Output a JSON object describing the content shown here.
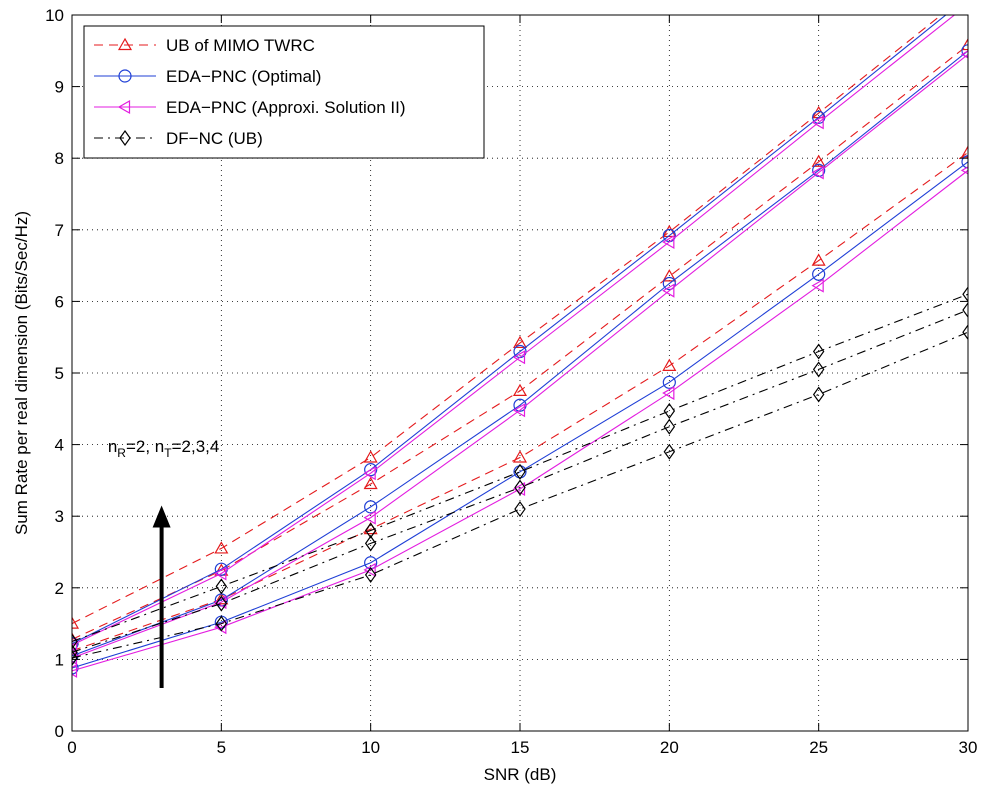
{
  "chart_data": {
    "type": "line",
    "title": "",
    "xlabel": "SNR (dB)",
    "ylabel": "Sum Rate per real dimension (Bits/Sec/Hz)",
    "xlim": [
      0,
      30
    ],
    "ylim": [
      0,
      10
    ],
    "xticks": [
      0,
      5,
      10,
      15,
      20,
      25,
      30
    ],
    "yticks": [
      0,
      1,
      2,
      3,
      4,
      5,
      6,
      7,
      8,
      9,
      10
    ],
    "grid": true,
    "legend_position": "top-left",
    "x": [
      0,
      5,
      10,
      15,
      20,
      25,
      30
    ],
    "series": [
      {
        "name": "UB of MIMO TWRC",
        "style": "dashed",
        "marker": "triangle-up",
        "color": "#e41a1c",
        "curves": [
          [
            1.5,
            2.55,
            3.82,
            5.42,
            6.97,
            8.63,
            10.3
          ],
          [
            1.28,
            2.24,
            3.45,
            4.75,
            6.35,
            7.95,
            9.58
          ],
          [
            1.12,
            1.84,
            2.82,
            3.82,
            5.1,
            6.57,
            8.08
          ]
        ]
      },
      {
        "name": "EDA−PNC (Optimal)",
        "style": "solid",
        "marker": "circle",
        "color": "#1f3fd6",
        "curves": [
          [
            1.22,
            2.26,
            3.65,
            5.3,
            6.92,
            8.57,
            10.25
          ],
          [
            1.05,
            1.83,
            3.13,
            4.55,
            6.25,
            7.83,
            9.5
          ],
          [
            0.88,
            1.52,
            2.35,
            3.62,
            4.87,
            6.38,
            7.95
          ]
        ]
      },
      {
        "name": "EDA−PNC (Approxi. Solution II)",
        "style": "solid",
        "marker": "triangle-left",
        "color": "#e31de0",
        "curves": [
          [
            1.2,
            2.2,
            3.6,
            5.22,
            6.83,
            8.5,
            10.15
          ],
          [
            1.02,
            1.8,
            2.98,
            4.48,
            6.15,
            7.8,
            9.45
          ],
          [
            0.84,
            1.45,
            2.25,
            3.38,
            4.72,
            6.22,
            7.83
          ]
        ]
      },
      {
        "name": "DF−NC (UB)",
        "style": "dashdot",
        "marker": "diamond",
        "color": "#000000",
        "curves": [
          [
            1.25,
            2.02,
            2.8,
            3.62,
            4.47,
            5.3,
            6.1
          ],
          [
            1.1,
            1.78,
            2.62,
            3.4,
            4.25,
            5.05,
            5.88
          ],
          [
            1.02,
            1.5,
            2.18,
            3.1,
            3.9,
            4.7,
            5.57
          ]
        ]
      }
    ],
    "annotation": {
      "n_main": "n",
      "r_sub": "R",
      "r_value": "=2, n",
      "t_sub": "T",
      "t_value": "=2,3,4",
      "arrow_from": [
        3.0,
        0.6
      ],
      "arrow_to": [
        3.0,
        3.15
      ],
      "text_at": [
        1.2,
        3.9
      ]
    }
  }
}
